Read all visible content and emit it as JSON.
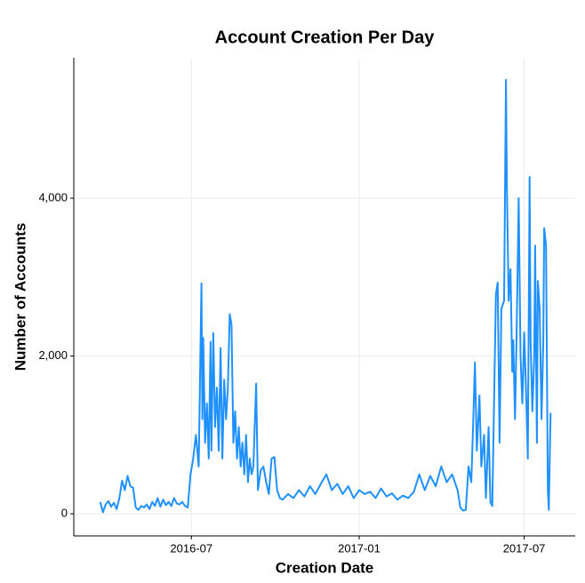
{
  "chart_data": {
    "type": "line",
    "title": "Account Creation Per Day",
    "x_label": "Creation Date",
    "y_label": "Number of Accounts",
    "color": "#1e90ff",
    "grid": true,
    "xlim": [
      "2016-02-23",
      "2017-08-26"
    ],
    "xticks": [
      {
        "value": "2016-07",
        "label": "2016-07"
      },
      {
        "value": "2017-01",
        "label": "2017-01"
      },
      {
        "value": "2017-07",
        "label": "2017-07"
      }
    ],
    "ylim": [
      -280,
      5780
    ],
    "yticks": [
      0,
      {
        "value": 2000,
        "label": "2,000"
      },
      {
        "value": 4000,
        "label": "4,000"
      }
    ],
    "x": [
      "2016-03-23",
      "2016-03-26",
      "2016-03-29",
      "2016-04-01",
      "2016-04-04",
      "2016-04-07",
      "2016-04-10",
      "2016-04-13",
      "2016-04-16",
      "2016-04-19",
      "2016-04-22",
      "2016-04-25",
      "2016-04-28",
      "2016-05-01",
      "2016-05-04",
      "2016-05-07",
      "2016-05-10",
      "2016-05-13",
      "2016-05-16",
      "2016-05-19",
      "2016-05-22",
      "2016-05-25",
      "2016-05-28",
      "2016-05-31",
      "2016-06-03",
      "2016-06-06",
      "2016-06-09",
      "2016-06-12",
      "2016-06-15",
      "2016-06-18",
      "2016-06-21",
      "2016-06-24",
      "2016-06-27",
      "2016-06-30",
      "2016-07-03",
      "2016-07-06",
      "2016-07-09",
      "2016-07-12",
      "2016-07-13",
      "2016-07-14",
      "2016-07-16",
      "2016-07-18",
      "2016-07-20",
      "2016-07-22",
      "2016-07-23",
      "2016-07-25",
      "2016-07-27",
      "2016-07-29",
      "2016-07-31",
      "2016-08-02",
      "2016-08-04",
      "2016-08-06",
      "2016-08-08",
      "2016-08-10",
      "2016-08-12",
      "2016-08-14",
      "2016-08-16",
      "2016-08-18",
      "2016-08-20",
      "2016-08-22",
      "2016-08-24",
      "2016-08-26",
      "2016-08-28",
      "2016-08-30",
      "2016-09-01",
      "2016-09-03",
      "2016-09-05",
      "2016-09-07",
      "2016-09-10",
      "2016-09-12",
      "2016-09-15",
      "2016-09-18",
      "2016-09-21",
      "2016-09-24",
      "2016-09-27",
      "2016-09-30",
      "2016-10-03",
      "2016-10-06",
      "2016-10-09",
      "2016-10-15",
      "2016-10-21",
      "2016-10-27",
      "2016-11-02",
      "2016-11-08",
      "2016-11-14",
      "2016-11-20",
      "2016-11-26",
      "2016-12-02",
      "2016-12-08",
      "2016-12-14",
      "2016-12-20",
      "2016-12-26",
      "2017-01-01",
      "2017-01-07",
      "2017-01-13",
      "2017-01-19",
      "2017-01-25",
      "2017-01-31",
      "2017-02-06",
      "2017-02-12",
      "2017-02-18",
      "2017-02-24",
      "2017-03-02",
      "2017-03-08",
      "2017-03-14",
      "2017-03-20",
      "2017-03-26",
      "2017-04-01",
      "2017-04-07",
      "2017-04-13",
      "2017-04-19",
      "2017-04-22",
      "2017-04-25",
      "2017-04-28",
      "2017-05-01",
      "2017-05-04",
      "2017-05-06",
      "2017-05-08",
      "2017-05-10",
      "2017-05-13",
      "2017-05-15",
      "2017-05-18",
      "2017-05-20",
      "2017-05-23",
      "2017-05-25",
      "2017-05-27",
      "2017-05-31",
      "2017-06-02",
      "2017-06-04",
      "2017-06-06",
      "2017-06-09",
      "2017-06-11",
      "2017-06-12",
      "2017-06-14",
      "2017-06-16",
      "2017-06-18",
      "2017-06-19",
      "2017-06-21",
      "2017-06-23",
      "2017-06-25",
      "2017-06-27",
      "2017-06-29",
      "2017-07-01",
      "2017-07-03",
      "2017-07-05",
      "2017-07-07",
      "2017-07-08",
      "2017-07-10",
      "2017-07-12",
      "2017-07-13",
      "2017-07-15",
      "2017-07-16",
      "2017-07-18",
      "2017-07-20",
      "2017-07-22",
      "2017-07-23",
      "2017-07-25",
      "2017-07-27",
      "2017-07-28",
      "2017-07-30"
    ],
    "values": [
      150,
      20,
      120,
      160,
      90,
      140,
      60,
      200,
      420,
      300,
      480,
      350,
      330,
      80,
      50,
      100,
      80,
      120,
      60,
      150,
      100,
      200,
      90,
      180,
      110,
      150,
      100,
      200,
      130,
      120,
      150,
      100,
      80,
      500,
      700,
      1000,
      600,
      2920,
      1200,
      2230,
      900,
      1400,
      700,
      2180,
      800,
      2290,
      1100,
      1600,
      800,
      2100,
      700,
      1700,
      1200,
      1600,
      2530,
      2400,
      900,
      1300,
      700,
      1100,
      600,
      900,
      500,
      1000,
      400,
      700,
      500,
      600,
      1650,
      300,
      550,
      600,
      400,
      250,
      700,
      720,
      300,
      200,
      180,
      250,
      200,
      300,
      220,
      350,
      250,
      380,
      500,
      300,
      380,
      250,
      350,
      200,
      300,
      250,
      280,
      200,
      320,
      220,
      260,
      180,
      230,
      200,
      280,
      500,
      300,
      480,
      350,
      600,
      400,
      500,
      300,
      80,
      40,
      50,
      600,
      400,
      1100,
      1920,
      800,
      1500,
      600,
      1000,
      200,
      1100,
      150,
      100,
      2780,
      2930,
      900,
      2600,
      2700,
      5500,
      4200,
      2700,
      3100,
      1800,
      2200,
      1200,
      2500,
      4000,
      2000,
      1400,
      2300,
      1600,
      700,
      4270,
      2200,
      1300,
      2000,
      3400,
      900,
      2950,
      2600,
      1200,
      2200,
      3620,
      3400,
      300,
      50,
      1280
    ]
  }
}
